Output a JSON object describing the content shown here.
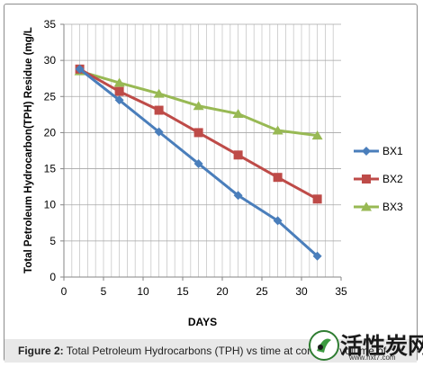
{
  "chart_data": {
    "type": "line",
    "xlabel": "DAYS",
    "ylabel": "Total Petroleum Hydrocarbon(TPH) Residue (mg/L",
    "xlim": [
      0,
      35
    ],
    "ylim": [
      0,
      35
    ],
    "x_ticks": [
      0,
      5,
      10,
      15,
      20,
      25,
      30,
      35
    ],
    "y_ticks": [
      0,
      5,
      10,
      15,
      20,
      25,
      30,
      35
    ],
    "grid": true,
    "legend_position": "right",
    "x": [
      2,
      7,
      12,
      17,
      22,
      27,
      32
    ],
    "series": [
      {
        "name": "BX1",
        "color": "#4a7ebb",
        "marker": "diamond",
        "values": [
          28.8,
          24.5,
          20.1,
          15.7,
          11.3,
          7.8,
          2.9
        ]
      },
      {
        "name": "BX2",
        "color": "#be4b48",
        "marker": "square",
        "values": [
          28.8,
          25.7,
          23.1,
          20.0,
          16.9,
          13.8,
          10.8
        ]
      },
      {
        "name": "BX3",
        "color": "#98b954",
        "marker": "triangle",
        "values": [
          28.5,
          26.9,
          25.4,
          23.7,
          22.6,
          20.3,
          19.6
        ]
      }
    ]
  },
  "caption": {
    "label": "Figure 2:",
    "text": " Total Petroleum Hydrocarbons (TPH) vs time at constant volume of"
  },
  "watermark": {
    "text": "活性炭网",
    "url": "www.hxt7.com"
  }
}
